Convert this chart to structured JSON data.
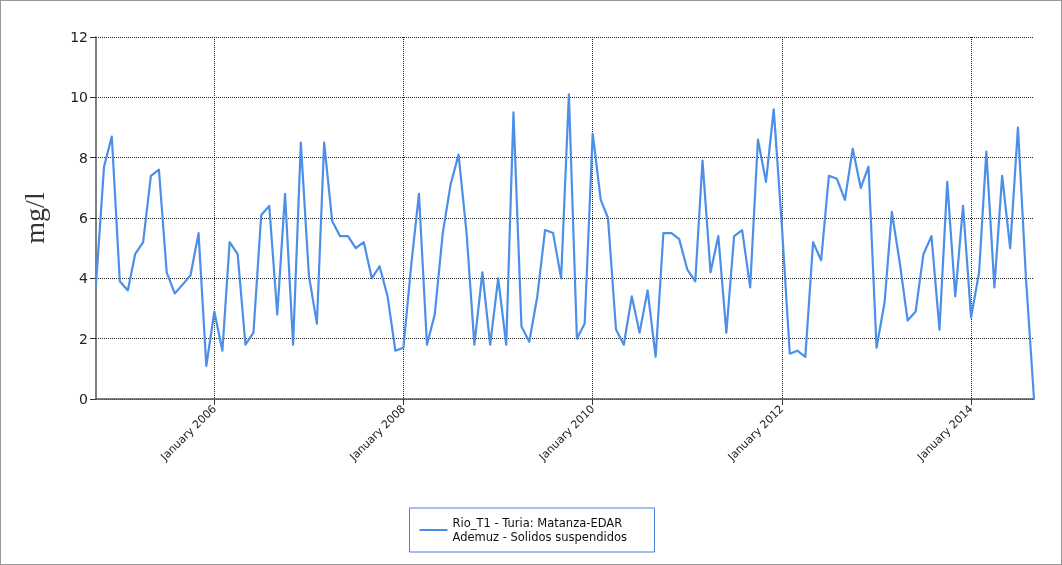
{
  "chart_data": {
    "type": "line",
    "ylabel": "mg/l",
    "legend": "bottom",
    "grid": true,
    "marker": "none",
    "line_style": "solid",
    "xlim": [
      "2004-10",
      "2014-09"
    ],
    "xticks": [
      {
        "value": "2006-01",
        "label": "January 2006"
      },
      {
        "value": "2008-01",
        "label": "January 2008"
      },
      {
        "value": "2010-01",
        "label": "January 2010"
      },
      {
        "value": "2012-01",
        "label": "January 2012"
      },
      {
        "value": "2014-01",
        "label": "January 2014"
      }
    ],
    "ylim": [
      0,
      12
    ],
    "yticks": [
      0,
      2,
      4,
      6,
      8,
      10,
      12
    ],
    "x": [
      "2004-10",
      "2004-11",
      "2004-12",
      "2005-01",
      "2005-02",
      "2005-03",
      "2005-04",
      "2005-05",
      "2005-06",
      "2005-07",
      "2005-08",
      "2005-09",
      "2005-10",
      "2005-11",
      "2005-12",
      "2006-01",
      "2006-02",
      "2006-03",
      "2006-04",
      "2006-05",
      "2006-06",
      "2006-07",
      "2006-08",
      "2006-09",
      "2006-10",
      "2006-11",
      "2006-12",
      "2007-01",
      "2007-02",
      "2007-03",
      "2007-04",
      "2007-05",
      "2007-06",
      "2007-07",
      "2007-08",
      "2007-09",
      "2007-10",
      "2007-11",
      "2007-12",
      "2008-01",
      "2008-02",
      "2008-03",
      "2008-04",
      "2008-05",
      "2008-06",
      "2008-07",
      "2008-08",
      "2008-09",
      "2008-10",
      "2008-11",
      "2008-12",
      "2009-01",
      "2009-02",
      "2009-03",
      "2009-04",
      "2009-05",
      "2009-06",
      "2009-07",
      "2009-08",
      "2009-09",
      "2009-10",
      "2009-11",
      "2009-12",
      "2010-01",
      "2010-02",
      "2010-03",
      "2010-04",
      "2010-05",
      "2010-06",
      "2010-07",
      "2010-08",
      "2010-09",
      "2010-10",
      "2010-11",
      "2010-12",
      "2011-01",
      "2011-02",
      "2011-03",
      "2011-04",
      "2011-05",
      "2011-06",
      "2011-07",
      "2011-08",
      "2011-09",
      "2011-10",
      "2011-11",
      "2011-12",
      "2012-01",
      "2012-02",
      "2012-03",
      "2012-04",
      "2012-05",
      "2012-06",
      "2012-07",
      "2012-08",
      "2012-09",
      "2012-10",
      "2012-11",
      "2012-12",
      "2013-01",
      "2013-02",
      "2013-03",
      "2013-04",
      "2013-05",
      "2013-06",
      "2013-07",
      "2013-08",
      "2013-09",
      "2013-10",
      "2013-11",
      "2013-12",
      "2014-01",
      "2014-02",
      "2014-03",
      "2014-04",
      "2014-05",
      "2014-06",
      "2014-07",
      "2014-08",
      "2014-09"
    ],
    "series": [
      {
        "name": "Rio_T1 - Turia: Matanza-EDAR Ademuz - Solidos suspendidos",
        "color": "#4c8fe8",
        "values": [
          3.8,
          7.7,
          8.7,
          3.9,
          3.6,
          4.8,
          5.2,
          7.4,
          7.6,
          4.2,
          3.5,
          3.8,
          4.1,
          5.5,
          1.1,
          2.9,
          1.6,
          5.2,
          4.8,
          1.8,
          2.2,
          6.1,
          6.4,
          2.8,
          6.8,
          1.8,
          8.5,
          4.1,
          2.5,
          8.5,
          5.9,
          5.4,
          5.4,
          5.0,
          5.2,
          4.0,
          4.4,
          3.4,
          1.6,
          1.7,
          4.5,
          6.8,
          1.8,
          2.8,
          5.5,
          7.1,
          8.1,
          5.5,
          1.8,
          4.2,
          1.8,
          4.0,
          1.8,
          9.5,
          2.4,
          1.9,
          3.4,
          5.6,
          5.5,
          4.0,
          10.1,
          2.0,
          2.5,
          8.8,
          6.6,
          6.0,
          2.3,
          1.8,
          3.4,
          2.2,
          3.6,
          1.4,
          5.5,
          5.5,
          5.3,
          4.3,
          3.9,
          7.9,
          4.2,
          5.4,
          2.2,
          5.4,
          5.6,
          3.7,
          8.6,
          7.2,
          9.6,
          5.8,
          1.5,
          1.6,
          1.4,
          5.2,
          4.6,
          7.4,
          7.3,
          6.6,
          8.3,
          7.0,
          7.7,
          1.7,
          3.2,
          6.2,
          4.5,
          2.6,
          2.9,
          4.8,
          5.4,
          2.3,
          7.2,
          3.4,
          6.4,
          2.7,
          4.2,
          8.2,
          3.7,
          7.4,
          5.0,
          9.0,
          4.0,
          0
        ]
      }
    ]
  }
}
